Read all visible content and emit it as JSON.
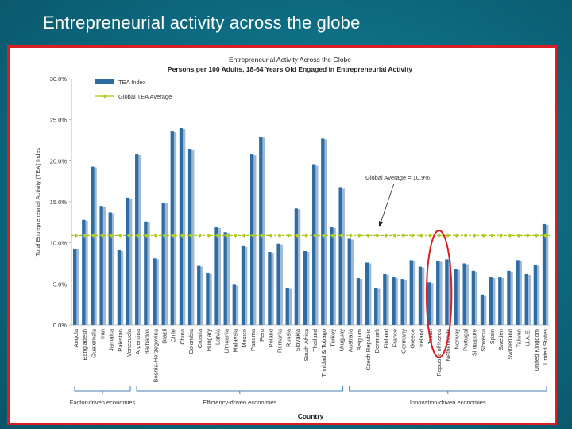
{
  "slide": {
    "title": "Entrepreneurial activity across the globe"
  },
  "chart_data": {
    "type": "bar",
    "title": "Entrepreneurial Activity Across the Globe",
    "subtitle": "Persons per 100 Adults, 18-64 Years Old Engaged in Entrepreneurial Activity",
    "ylabel": "Total Entrepreneurial Activity (TEA) Index",
    "xlabel": "Country",
    "ylim": [
      0,
      30
    ],
    "yticks": [
      "0.0%",
      "5.0%",
      "10.0%",
      "15.0%",
      "20.0%",
      "25.0%",
      "30.0%"
    ],
    "legend": {
      "bar_label": "TEA Index",
      "line_label": "Global TEA Average",
      "position": "top-left"
    },
    "annotation": "Global Average = 10.9%",
    "global_average": 10.9,
    "highlight_categories": [
      "Japan",
      "Republic of Korea",
      "Netherlands"
    ],
    "categories": [
      "Angola",
      "Bangladesh",
      "Guatemala",
      "Iran",
      "Jamaica",
      "Pakistan",
      "Venezuela",
      "Argentina",
      "Barbados",
      "Bosnia-Herzegovina",
      "Brazil",
      "Chile",
      "China",
      "Colombia",
      "Croatia",
      "Hungary",
      "Latvia",
      "Lithuania",
      "Malaysia",
      "Mexico",
      "Panama",
      "Peru",
      "Poland",
      "Romania",
      "Russia",
      "Slovakia",
      "South Africa",
      "Thailand",
      "Trinidad & Tobago",
      "Turkey",
      "Uruguay",
      "Australia",
      "Belgium",
      "Czech Republic",
      "Denmark",
      "Finland",
      "France",
      "Germany",
      "Greece",
      "Ireland",
      "Japan",
      "Republic of Korea",
      "Netherlands",
      "Norway",
      "Portugal",
      "Singapore",
      "Slovenia",
      "Spain",
      "Sweden",
      "Switzerland",
      "Taiwan",
      "U.A.E.",
      "United Kingdom",
      "United States"
    ],
    "values": [
      9.3,
      12.8,
      19.3,
      14.5,
      13.7,
      9.1,
      15.5,
      20.8,
      12.6,
      8.1,
      14.9,
      23.6,
      24.0,
      21.4,
      7.2,
      6.3,
      11.9,
      11.3,
      4.9,
      9.6,
      20.8,
      22.9,
      8.9,
      9.9,
      4.5,
      14.2,
      9.0,
      19.5,
      22.7,
      11.9,
      16.7,
      10.5,
      5.7,
      7.6,
      4.5,
      6.2,
      5.8,
      5.6,
      7.9,
      7.1,
      5.2,
      7.8,
      8.0,
      6.8,
      7.5,
      6.6,
      3.7,
      5.8,
      5.8,
      6.6,
      7.9,
      6.2,
      7.3,
      12.3
    ],
    "groups": [
      {
        "label": "Factor-driven economies",
        "from": 0,
        "to": 6
      },
      {
        "label": "Efficiency-driven economies",
        "from": 7,
        "to": 30
      },
      {
        "label": "Innovation-driven economies",
        "from": 31,
        "to": 53
      }
    ],
    "colors": {
      "bar": "#2e6da4",
      "bar_shade": "#9fb8d3",
      "average": "#a8c418",
      "average_marker": "#b3cc1c",
      "highlight": "#d81f26"
    }
  }
}
